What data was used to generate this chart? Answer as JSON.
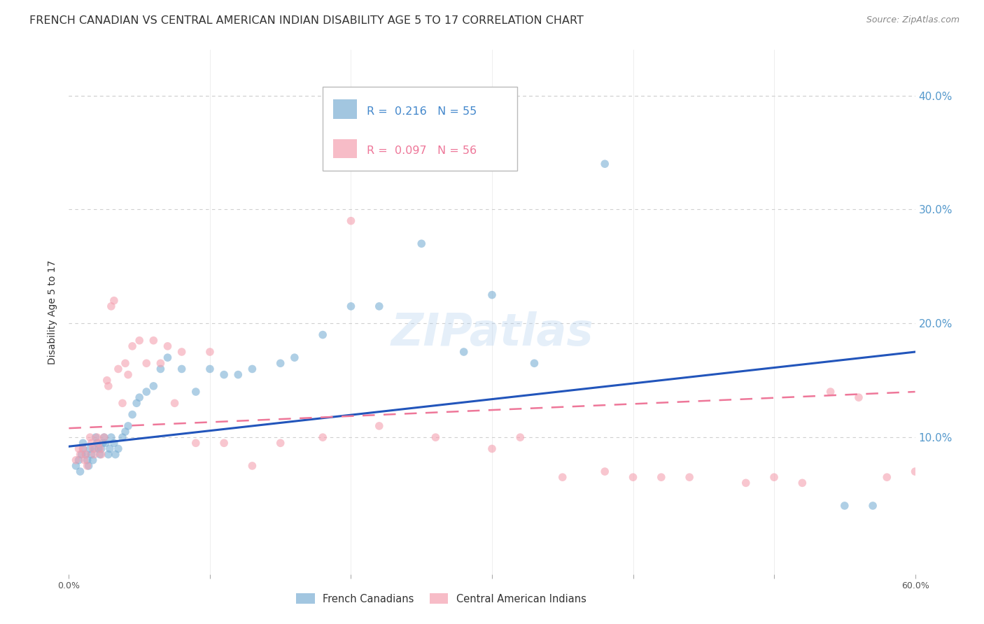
{
  "title": "FRENCH CANADIAN VS CENTRAL AMERICAN INDIAN DISABILITY AGE 5 TO 17 CORRELATION CHART",
  "source": "Source: ZipAtlas.com",
  "ylabel": "Disability Age 5 to 17",
  "xmin": 0.0,
  "xmax": 0.6,
  "ymin": -0.02,
  "ymax": 0.44,
  "grid_color": "#d0d0d0",
  "background_color": "#ffffff",
  "blue_color": "#7bafd4",
  "pink_color": "#f4a0b0",
  "blue_line_color": "#2255bb",
  "pink_line_color": "#ee7799",
  "blue_trend_x": [
    0.0,
    0.6
  ],
  "blue_trend_y": [
    0.092,
    0.175
  ],
  "pink_trend_x": [
    0.0,
    0.6
  ],
  "pink_trend_y": [
    0.108,
    0.14
  ],
  "french_canadian_x": [
    0.005,
    0.007,
    0.008,
    0.009,
    0.01,
    0.01,
    0.012,
    0.013,
    0.014,
    0.015,
    0.016,
    0.017,
    0.018,
    0.019,
    0.02,
    0.021,
    0.022,
    0.023,
    0.024,
    0.025,
    0.026,
    0.028,
    0.029,
    0.03,
    0.032,
    0.033,
    0.035,
    0.038,
    0.04,
    0.042,
    0.045,
    0.048,
    0.05,
    0.055,
    0.06,
    0.065,
    0.07,
    0.08,
    0.09,
    0.1,
    0.11,
    0.12,
    0.13,
    0.15,
    0.16,
    0.18,
    0.2,
    0.22,
    0.25,
    0.28,
    0.3,
    0.33,
    0.38,
    0.55,
    0.57
  ],
  "french_canadian_y": [
    0.075,
    0.08,
    0.07,
    0.085,
    0.09,
    0.095,
    0.085,
    0.08,
    0.075,
    0.09,
    0.085,
    0.08,
    0.09,
    0.1,
    0.095,
    0.09,
    0.085,
    0.09,
    0.095,
    0.1,
    0.095,
    0.085,
    0.09,
    0.1,
    0.095,
    0.085,
    0.09,
    0.1,
    0.105,
    0.11,
    0.12,
    0.13,
    0.135,
    0.14,
    0.145,
    0.16,
    0.17,
    0.16,
    0.14,
    0.16,
    0.155,
    0.155,
    0.16,
    0.165,
    0.17,
    0.19,
    0.215,
    0.215,
    0.27,
    0.175,
    0.225,
    0.165,
    0.34,
    0.04,
    0.04
  ],
  "central_american_x": [
    0.005,
    0.007,
    0.008,
    0.01,
    0.011,
    0.012,
    0.013,
    0.015,
    0.016,
    0.017,
    0.018,
    0.02,
    0.021,
    0.022,
    0.023,
    0.025,
    0.027,
    0.028,
    0.03,
    0.032,
    0.035,
    0.038,
    0.04,
    0.042,
    0.045,
    0.05,
    0.055,
    0.06,
    0.065,
    0.07,
    0.075,
    0.08,
    0.09,
    0.1,
    0.11,
    0.13,
    0.15,
    0.18,
    0.2,
    0.22,
    0.26,
    0.3,
    0.32,
    0.35,
    0.38,
    0.4,
    0.42,
    0.44,
    0.48,
    0.5,
    0.52,
    0.54,
    0.56,
    0.58,
    0.6
  ],
  "central_american_y": [
    0.08,
    0.09,
    0.085,
    0.09,
    0.08,
    0.085,
    0.075,
    0.1,
    0.095,
    0.09,
    0.085,
    0.1,
    0.095,
    0.09,
    0.085,
    0.1,
    0.15,
    0.145,
    0.215,
    0.22,
    0.16,
    0.13,
    0.165,
    0.155,
    0.18,
    0.185,
    0.165,
    0.185,
    0.165,
    0.18,
    0.13,
    0.175,
    0.095,
    0.175,
    0.095,
    0.075,
    0.095,
    0.1,
    0.29,
    0.11,
    0.1,
    0.09,
    0.1,
    0.065,
    0.07,
    0.065,
    0.065,
    0.065,
    0.06,
    0.065,
    0.06,
    0.14,
    0.135,
    0.065,
    0.07
  ],
  "marker_size": 70,
  "title_fontsize": 11.5,
  "axis_label_fontsize": 10,
  "tick_fontsize": 9,
  "legend_fontsize": 11
}
